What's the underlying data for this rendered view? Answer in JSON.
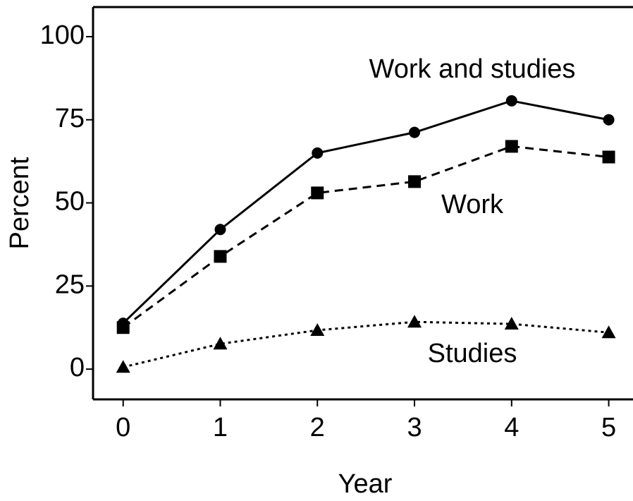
{
  "chart_data": {
    "type": "line",
    "x_label": "Year",
    "y_label": "Percent",
    "x": [
      0,
      1,
      2,
      3,
      4,
      5
    ],
    "series": [
      {
        "name": "Work and studies",
        "color": "#000000",
        "dash": "solid",
        "marker": "circle",
        "values": [
          13.8,
          42,
          65,
          71.2,
          80.7,
          75
        ]
      },
      {
        "name": "Work",
        "color": "#000000",
        "dash": "dashed",
        "marker": "square",
        "values": [
          12.5,
          33.9,
          53,
          56.4,
          67,
          63.8
        ]
      },
      {
        "name": "Studies",
        "color": "#000000",
        "dash": "dotted",
        "marker": "triangle",
        "values": [
          0.6,
          7.6,
          11.7,
          14.2,
          13.6,
          11
        ]
      }
    ],
    "xlim": [
      -0.31,
      5.25
    ],
    "ylim": [
      -9.1,
      108.9
    ],
    "xticks": [
      0,
      1,
      2,
      3,
      4,
      5
    ],
    "yticks": [
      0,
      25,
      50,
      75,
      100
    ],
    "grid": false
  }
}
